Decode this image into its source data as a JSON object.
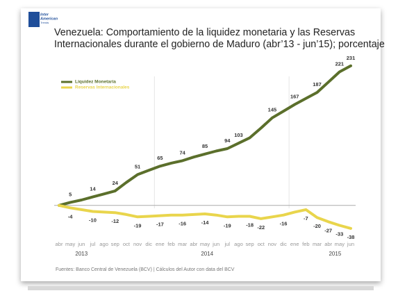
{
  "logo": [
    "Inter",
    "American",
    "Trends"
  ],
  "chart_data": {
    "type": "line",
    "title": [
      "Venezuela: Comportamiento de la liquidez monetaria y las Reservas",
      "Internacionales durante el gobierno de Maduro  (abr’13 - jun’15); porcentaje"
    ],
    "categories": [
      "abr",
      "may",
      "jun",
      "jul",
      "ago",
      "sep",
      "oct",
      "nov",
      "dic",
      "ene",
      "feb",
      "mar",
      "abr",
      "may",
      "jun",
      "jul",
      "ago",
      "sep",
      "oct",
      "nov",
      "dic",
      "ene",
      "feb",
      "mar",
      "abr",
      "may",
      "jun"
    ],
    "years": [
      "2013",
      "2014",
      "2015"
    ],
    "ylim": [
      -60,
      240
    ],
    "series": [
      {
        "name": "Liquidez Monetaria",
        "color": "#5b6f2b",
        "values": [
          0,
          5,
          9,
          14,
          19,
          24,
          38,
          51,
          58,
          65,
          70,
          74,
          80,
          85,
          90,
          94,
          103,
          112,
          128,
          145,
          156,
          167,
          177,
          187,
          204,
          221,
          231
        ],
        "value_labels": [
          null,
          "5",
          null,
          "14",
          null,
          "24",
          null,
          "51",
          null,
          "65",
          null,
          "74",
          null,
          "85",
          null,
          "94",
          "103",
          null,
          null,
          "145",
          null,
          "167",
          null,
          "187",
          null,
          "221",
          "231"
        ]
      },
      {
        "name": "Reservas Internacionales",
        "color": "#e9d54c",
        "values": [
          0,
          -4,
          -7,
          -10,
          -11,
          -12,
          -15,
          -19,
          -18,
          -17,
          -16,
          -16,
          -15,
          -14,
          -16,
          -19,
          -18,
          -18,
          -22,
          -19,
          -16,
          -11,
          -7,
          -20,
          -27,
          -33,
          -38
        ],
        "value_labels": [
          null,
          "-4",
          null,
          "-10",
          null,
          "-12",
          null,
          "-19",
          null,
          "-17",
          null,
          "-16",
          null,
          "-14",
          null,
          "-19",
          null,
          "-18",
          "-22",
          null,
          "-16",
          null,
          "-7",
          "-20",
          "-27",
          "-33",
          "-38"
        ]
      }
    ],
    "source": "Fuentes: Banco Central de Venezuela (BCV) | Cálculos del Autor con data del BCV"
  }
}
